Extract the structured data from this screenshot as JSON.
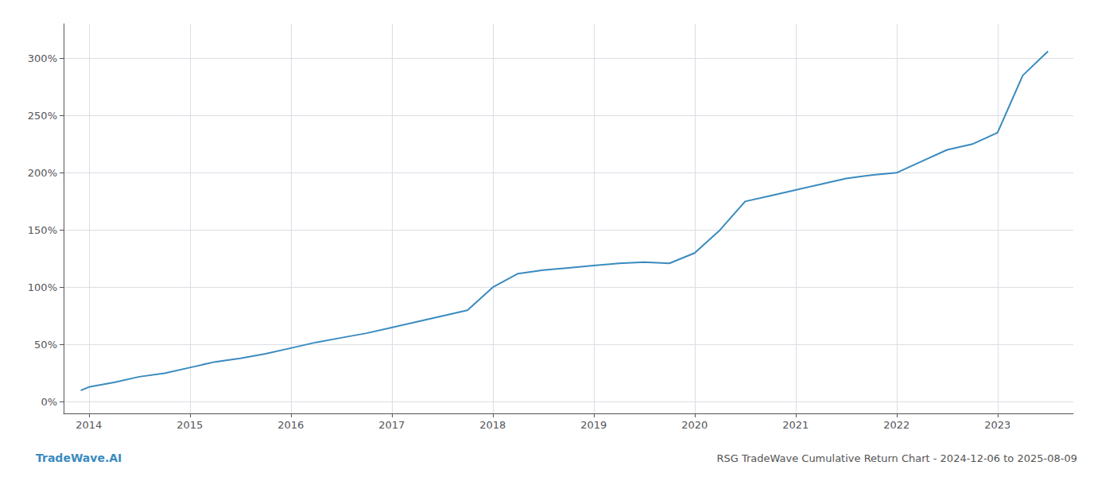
{
  "chart_data": {
    "type": "line",
    "title": "RSG TradeWave Cumulative Return Chart - 2024-12-06 to 2025-08-09",
    "annotations": [
      "TradeWave.AI"
    ],
    "x": [
      2013.92,
      2014.0,
      2014.25,
      2014.5,
      2014.75,
      2015.0,
      2015.25,
      2015.5,
      2015.75,
      2016.0,
      2016.25,
      2016.5,
      2016.75,
      2017.0,
      2017.25,
      2017.5,
      2017.75,
      2018.0,
      2018.25,
      2018.5,
      2018.75,
      2019.0,
      2019.25,
      2019.5,
      2019.75,
      2020.0,
      2020.25,
      2020.5,
      2020.75,
      2021.0,
      2021.25,
      2021.5,
      2021.75,
      2022.0,
      2022.25,
      2022.5,
      2022.75,
      2023.0,
      2023.25,
      2023.5
    ],
    "values": [
      10,
      13,
      17,
      22,
      25,
      30,
      35,
      38,
      42,
      47,
      52,
      56,
      60,
      65,
      70,
      75,
      80,
      100,
      112,
      115,
      117,
      119,
      121,
      122,
      121,
      130,
      150,
      175,
      180,
      185,
      190,
      195,
      198,
      200,
      210,
      220,
      225,
      235,
      285,
      306
    ],
    "color": "#3a8bbf",
    "xlim": [
      2013.75,
      2023.75
    ],
    "xticks": [
      2014,
      2015,
      2016,
      2017,
      2018,
      2019,
      2020,
      2021,
      2022,
      2023
    ],
    "ylim": [
      -10,
      330
    ],
    "yticks": [
      {
        "value": 0,
        "label": "0%"
      },
      {
        "value": 50,
        "label": "50%"
      },
      {
        "value": 100,
        "label": "100%"
      },
      {
        "value": 150,
        "label": "150%"
      },
      {
        "value": 200,
        "label": "200%"
      },
      {
        "value": 250,
        "label": "250%"
      },
      {
        "value": 300,
        "label": "300%"
      }
    ],
    "grid": true
  }
}
